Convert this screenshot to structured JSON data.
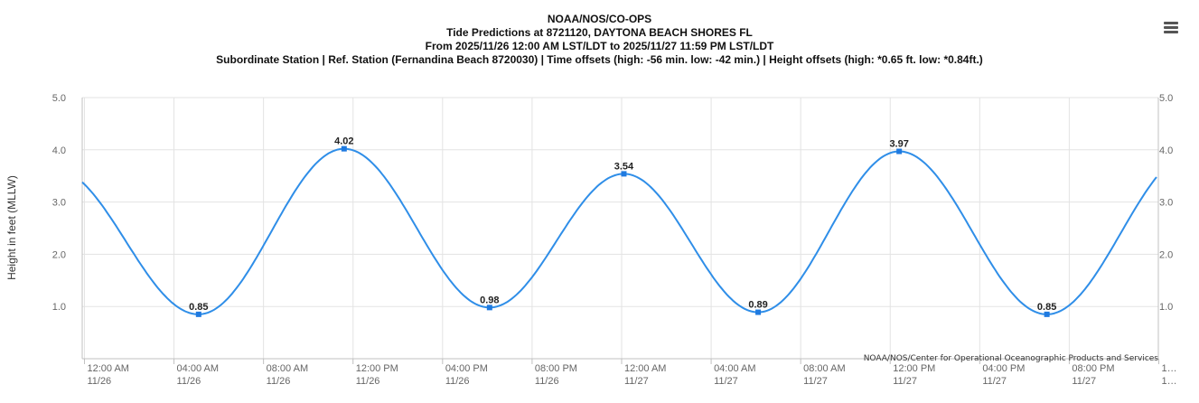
{
  "chart_data": {
    "type": "line",
    "title_lines": [
      "NOAA/NOS/CO-OPS",
      "Tide Predictions at 8721120, DAYTONA BEACH SHORES FL",
      "From 2025/11/26 12:00 AM LST/LDT to 2025/11/27 11:59 PM LST/LDT",
      "Subordinate Station | Ref. Station (Fernandina Beach 8720030) | Time offsets (high: -56 min. low: -42 min.) | Height offsets (high: *0.65 ft. low: *0.84ft.)"
    ],
    "ylabel": "Height in feet (MLLW)",
    "ylim": [
      0,
      5
    ],
    "yticks": [
      {
        "value": 1,
        "label": "1.0"
      },
      {
        "value": 2,
        "label": "2.0"
      },
      {
        "value": 3,
        "label": "3.0"
      },
      {
        "value": 4,
        "label": "4.0"
      },
      {
        "value": 5,
        "label": "5.0"
      }
    ],
    "xlim_hours": [
      -0.1,
      47.98
    ],
    "xticks": [
      {
        "hour": 0,
        "time": "12:00 AM",
        "date": "11/26"
      },
      {
        "hour": 4,
        "time": "04:00 AM",
        "date": "11/26"
      },
      {
        "hour": 8,
        "time": "08:00 AM",
        "date": "11/26"
      },
      {
        "hour": 12,
        "time": "12:00 PM",
        "date": "11/26"
      },
      {
        "hour": 16,
        "time": "04:00 PM",
        "date": "11/26"
      },
      {
        "hour": 20,
        "time": "08:00 PM",
        "date": "11/26"
      },
      {
        "hour": 24,
        "time": "12:00 AM",
        "date": "11/27"
      },
      {
        "hour": 28,
        "time": "04:00 AM",
        "date": "11/27"
      },
      {
        "hour": 32,
        "time": "08:00 AM",
        "date": "11/27"
      },
      {
        "hour": 36,
        "time": "12:00 PM",
        "date": "11/27"
      },
      {
        "hour": 40,
        "time": "04:00 PM",
        "date": "11/27"
      },
      {
        "hour": 44,
        "time": "08:00 PM",
        "date": "11/27"
      },
      {
        "hour": 48,
        "time": "1…",
        "date": "1…"
      }
    ],
    "series": [
      {
        "start_value": 3.38,
        "end_value": 3.52,
        "extremes": [
          {
            "hour": 5.1,
            "value": 0.85,
            "label": "0.85"
          },
          {
            "hour": 11.6,
            "value": 4.02,
            "label": "4.02"
          },
          {
            "hour": 18.1,
            "value": 0.98,
            "label": "0.98"
          },
          {
            "hour": 24.1,
            "value": 3.54,
            "label": "3.54"
          },
          {
            "hour": 30.1,
            "value": 0.89,
            "label": "0.89"
          },
          {
            "hour": 36.4,
            "value": 3.97,
            "label": "3.97"
          },
          {
            "hour": 43.0,
            "value": 0.85,
            "label": "0.85"
          }
        ]
      }
    ],
    "grid": true,
    "colors": {
      "line": "#2f8ee8",
      "marker": "#1f7ae0",
      "grid": "#e3e3e3",
      "axis": "#c0c0c0",
      "menu": "#555555"
    },
    "credit": "NOAA/NOS/Center for Operational Oceanographic Products and Services"
  },
  "menu_icon": "hamburger-menu-icon"
}
